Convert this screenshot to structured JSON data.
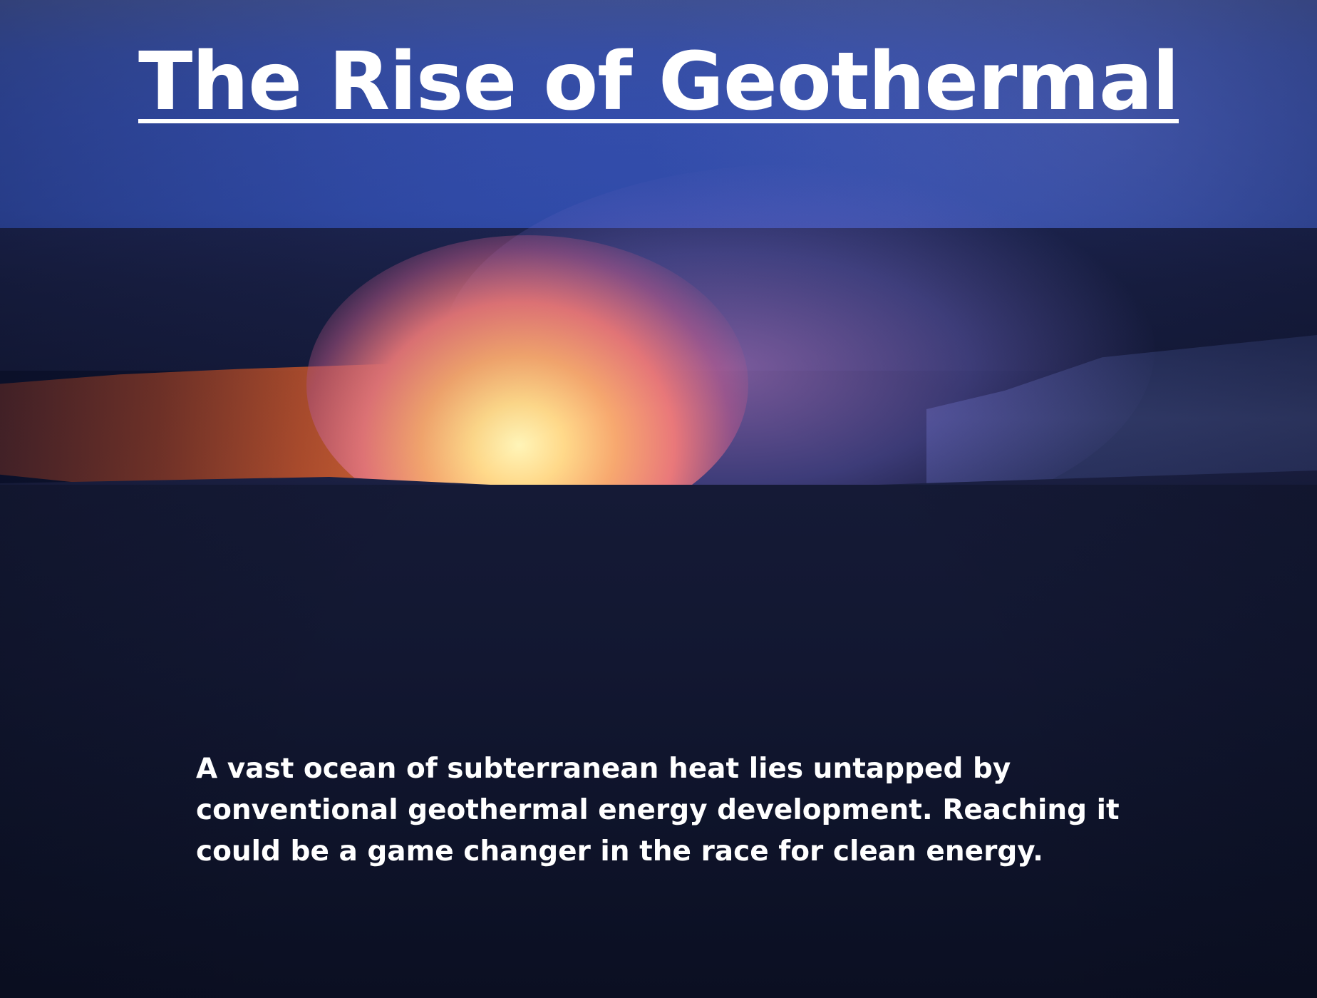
{
  "title": "The Rise of Geothermal",
  "intro": "A vast ocean of subterranean heat lies untapped by conventional geothermal energy development. Reaching it could be a game changer in the race for clean energy.",
  "colors": {
    "sky": "#3a57c0",
    "lava_core": "#fff5b8",
    "lava_edge": "#e9787a",
    "ground": "#121731",
    "text": "#ffffff"
  }
}
